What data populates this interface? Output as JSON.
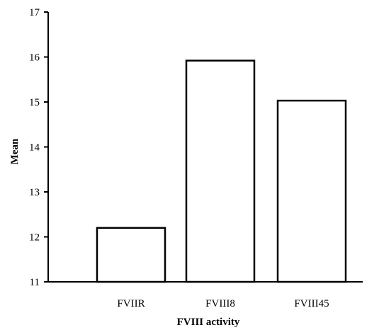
{
  "chart_data": {
    "type": "bar",
    "categories": [
      "FVIIR",
      "FVIII8",
      "FVIII45"
    ],
    "values": [
      12.2,
      15.92,
      15.03
    ],
    "xlabel": "FVIII activity",
    "ylabel": "Mean",
    "ylim": [
      11,
      17
    ],
    "yticks": [
      11,
      12,
      13,
      14,
      15,
      16,
      17
    ],
    "grid": false,
    "legend": "none",
    "colors": {
      "bar_fill": "#ffffff",
      "bar_stroke": "#000000",
      "axis": "#000000"
    }
  }
}
